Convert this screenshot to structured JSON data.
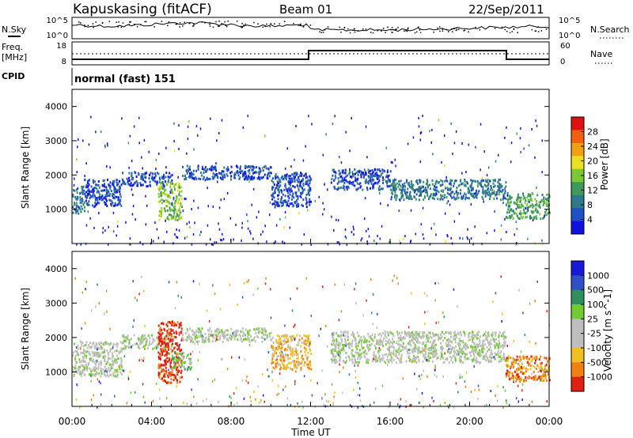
{
  "header": {
    "station": "Kapuskasing (fitACF)",
    "beam": "Beam 01",
    "date": "22/Sep/2011"
  },
  "noise_panel": {
    "left_label": "N.Sky",
    "right_label": "N.Search",
    "left_ticks": [
      "10^5",
      "10^0"
    ],
    "right_ticks": [
      "10^5",
      "10^0"
    ]
  },
  "freq_panel": {
    "left_label_1": "Freq.",
    "left_label_2": "[MHz]",
    "right_label": "Nave",
    "left_ticks": [
      "18",
      "8"
    ],
    "right_ticks": [
      "60",
      "0"
    ]
  },
  "cpid": {
    "label": "CPID",
    "value": "normal (fast) 151"
  },
  "colors": {
    "power_scale": [
      "#1010e0",
      "#2050c8",
      "#2e7a8c",
      "#3c9a5a",
      "#7cc832",
      "#e8e020",
      "#f0a010",
      "#f06010",
      "#e01010"
    ],
    "velocity_scale": [
      "#1818d8",
      "#3050c8",
      "#2f8f5f",
      "#70cc30",
      "#bebebe",
      "#bebebe",
      "#f0c020",
      "#f08010",
      "#e02010"
    ]
  },
  "chart_data": [
    {
      "type": "heatmap",
      "name": "power",
      "ylabel": "Slant Range [km]",
      "yticks": [
        "1000",
        "2000",
        "3000",
        "4000"
      ],
      "ylim": [
        0,
        4500
      ],
      "xlim": [
        0,
        24
      ],
      "colorbar_label": "Power [dB]",
      "colorbar_ticks": [
        "4",
        "8",
        "12",
        "16",
        "20",
        "24",
        "28"
      ],
      "colorbar_range": [
        0,
        32
      ],
      "echo_bands": [
        {
          "x": [
            0.0,
            0.6
          ],
          "range": [
            900,
            1700
          ],
          "level": 2
        },
        {
          "x": [
            0.6,
            2.5
          ],
          "range": [
            1100,
            1900
          ],
          "level": 1
        },
        {
          "x": [
            2.5,
            5.0
          ],
          "range": [
            1700,
            2100
          ],
          "level": 1
        },
        {
          "x": [
            4.3,
            5.5
          ],
          "range": [
            700,
            1800
          ],
          "level": 4
        },
        {
          "x": [
            5.5,
            10.0
          ],
          "range": [
            1900,
            2300
          ],
          "level": 1
        },
        {
          "x": [
            10.0,
            12.0
          ],
          "range": [
            1100,
            2100
          ],
          "level": 1
        },
        {
          "x": [
            13.0,
            16.0
          ],
          "range": [
            1600,
            2200
          ],
          "level": 1
        },
        {
          "x": [
            16.0,
            21.8
          ],
          "range": [
            1300,
            1900
          ],
          "level": 2
        },
        {
          "x": [
            21.8,
            24.0
          ],
          "range": [
            750,
            1500
          ],
          "level": 3
        }
      ]
    },
    {
      "type": "heatmap",
      "name": "velocity",
      "ylabel": "Slant Range [km]",
      "yticks": [
        "1000",
        "2000",
        "3000",
        "4000"
      ],
      "ylim": [
        0,
        4500
      ],
      "xlim": [
        0,
        24
      ],
      "xlabel": "Time UT",
      "xticks": [
        "00:00",
        "04:00",
        "08:00",
        "12:00",
        "16:00",
        "20:00",
        "00:00"
      ],
      "colorbar_label": "Velocity [m s^-1]",
      "colorbar_ticks": [
        "1000",
        "500",
        "100",
        "25",
        "-25",
        "-100",
        "-500",
        "-1000"
      ],
      "echo_bands": [
        {
          "x": [
            0.0,
            2.5
          ],
          "range": [
            900,
            1900
          ],
          "level": 4
        },
        {
          "x": [
            2.5,
            5.0
          ],
          "range": [
            1700,
            2100
          ],
          "level": 4
        },
        {
          "x": [
            4.3,
            5.5
          ],
          "range": [
            700,
            2500
          ],
          "level": 8
        },
        {
          "x": [
            5.0,
            6.0
          ],
          "range": [
            1100,
            1600
          ],
          "level": 3
        },
        {
          "x": [
            5.5,
            10.0
          ],
          "range": [
            1900,
            2300
          ],
          "level": 4
        },
        {
          "x": [
            10.0,
            12.0
          ],
          "range": [
            1100,
            2100
          ],
          "level": 6
        },
        {
          "x": [
            13.0,
            21.8
          ],
          "range": [
            1300,
            2200
          ],
          "level": 4
        },
        {
          "x": [
            21.8,
            24.0
          ],
          "range": [
            750,
            1500
          ],
          "level": 7
        }
      ]
    }
  ]
}
